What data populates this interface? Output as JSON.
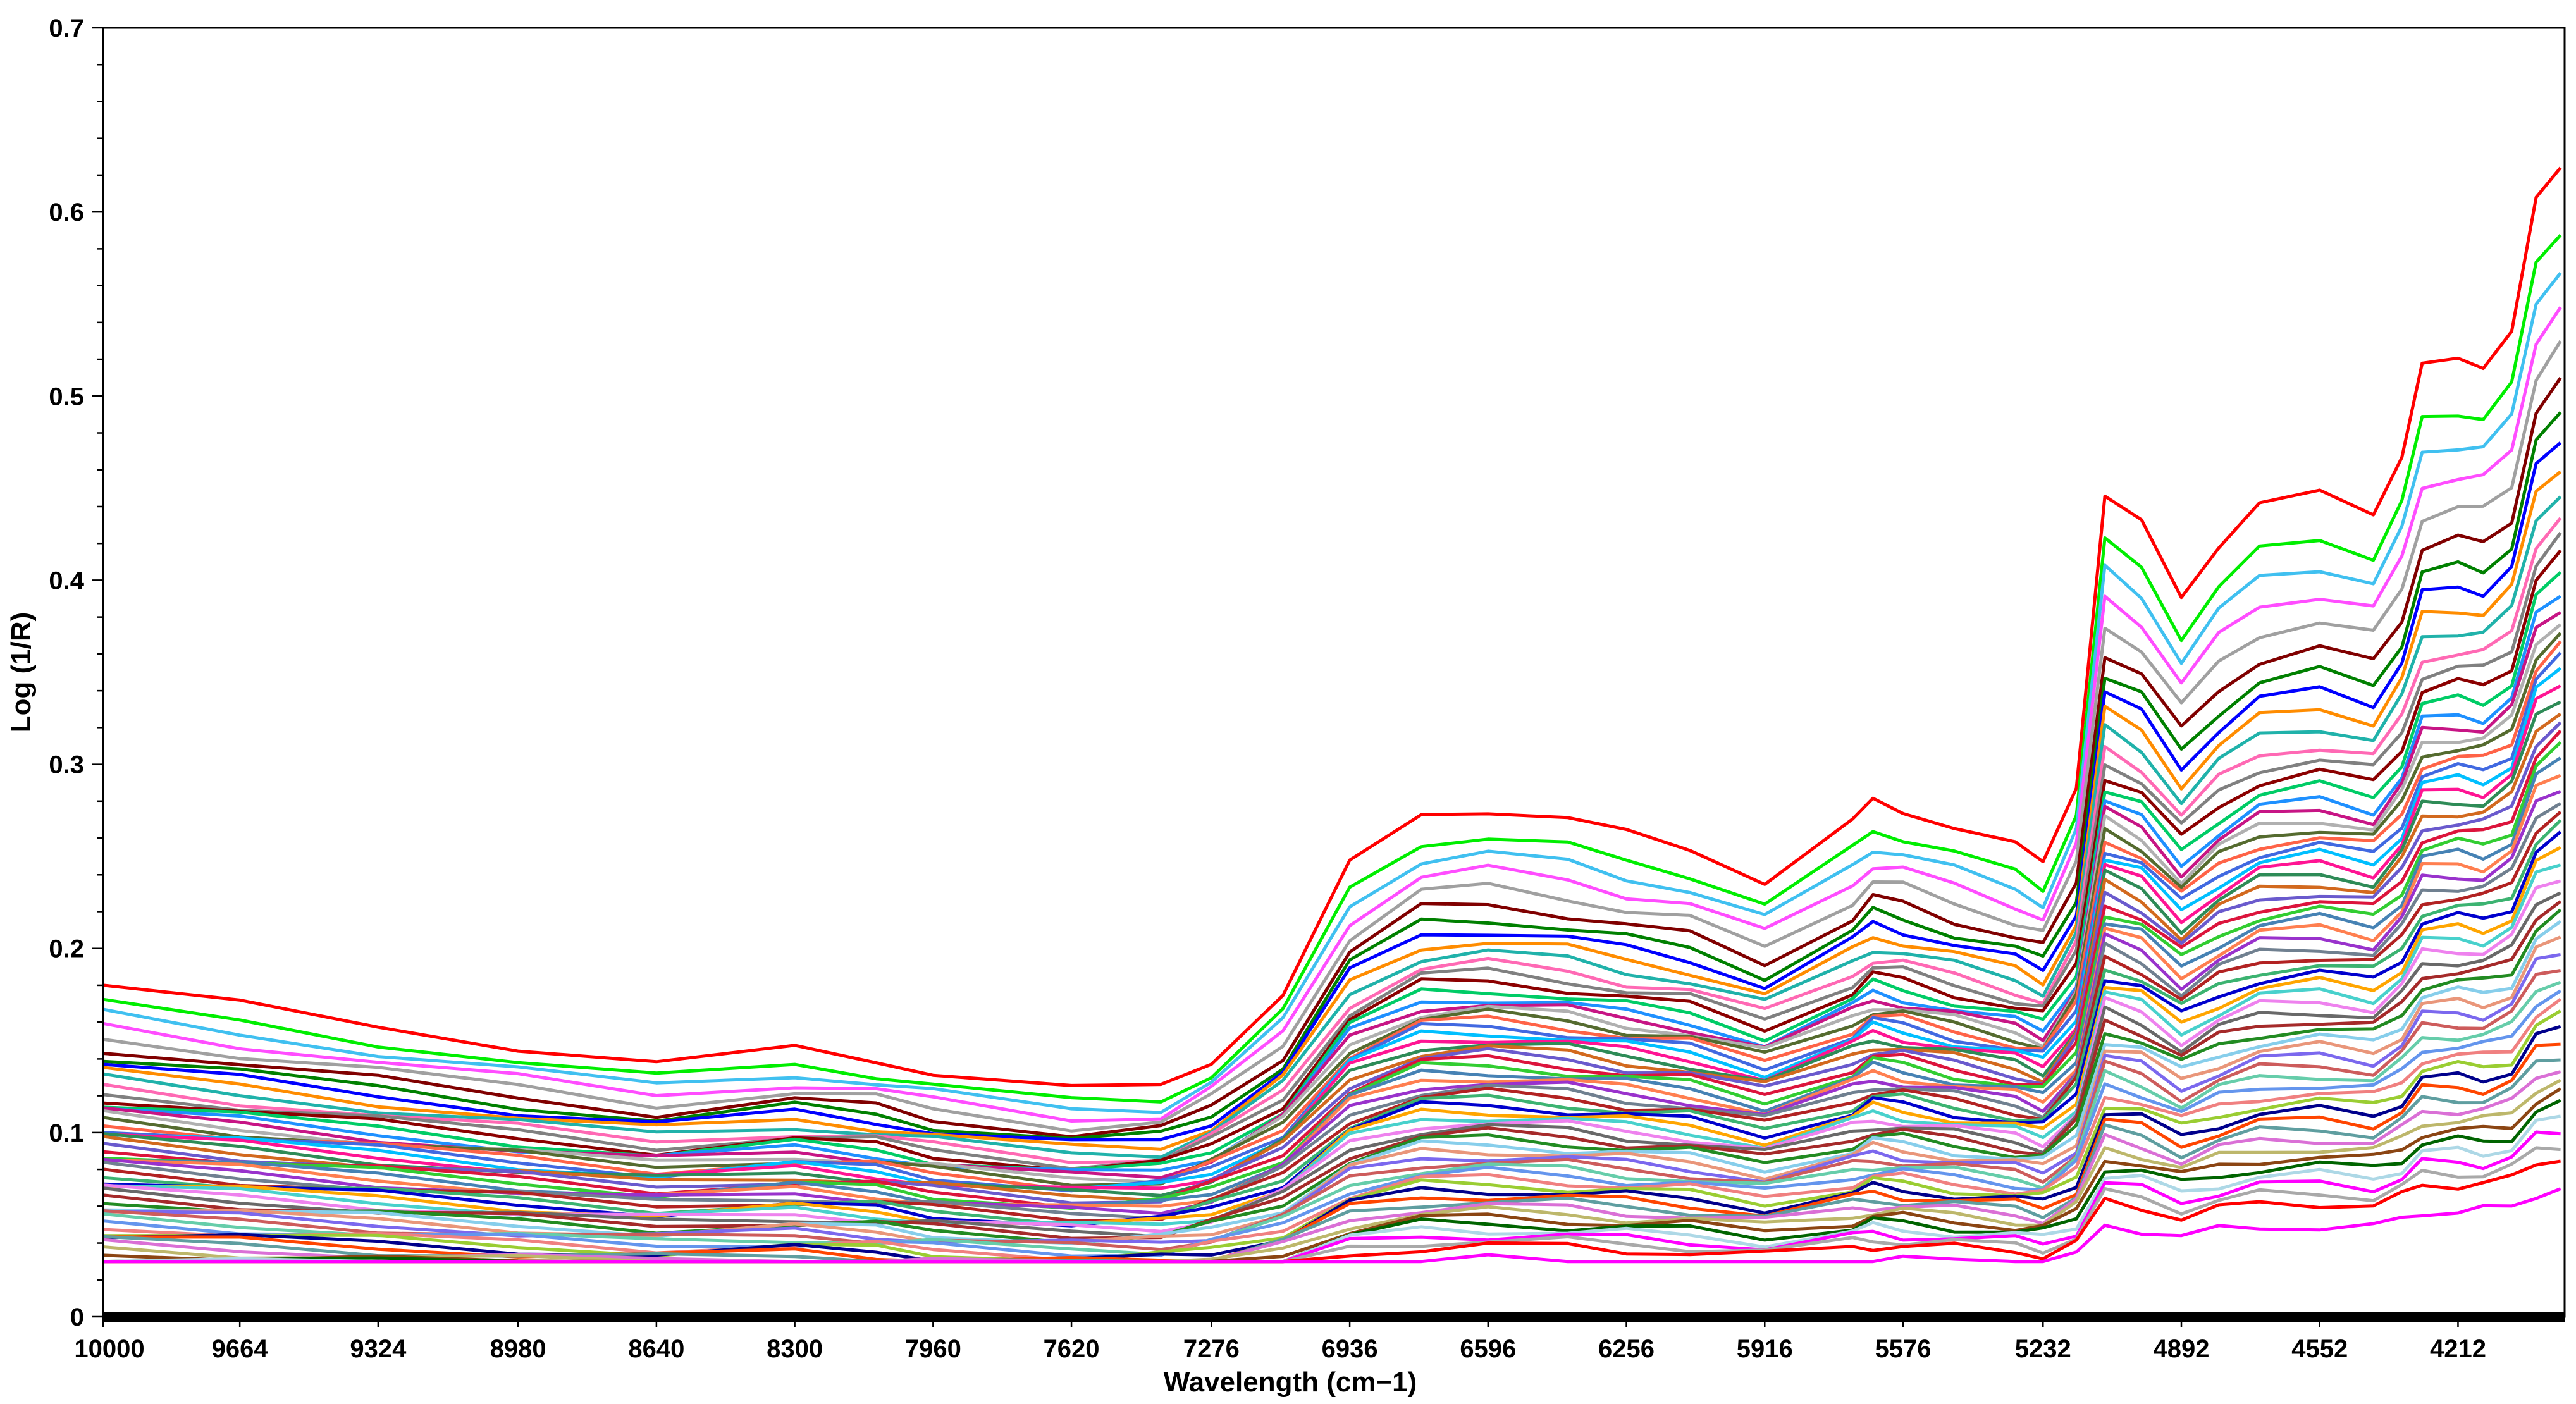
{
  "chart_data": {
    "type": "line",
    "title": "",
    "xlabel": "Wavelength (cm−1)",
    "ylabel": "Log (1/R)",
    "xlim": [
      10000,
      3950
    ],
    "ylim": [
      0,
      0.7
    ],
    "x_reversed": true,
    "grid": false,
    "legend": "none",
    "x_ticks": [
      10000,
      9664,
      9324,
      8980,
      8640,
      8300,
      7960,
      7620,
      7276,
      6936,
      6596,
      6256,
      5916,
      5576,
      5232,
      4892,
      4552,
      4212
    ],
    "x_tick_labels": [
      "10000",
      "9664",
      "9324",
      "8980",
      "8640",
      "8300",
      "7960",
      "7620",
      "7276",
      "6936",
      "6596",
      "6256",
      "5916",
      "5576",
      "5232",
      "4892",
      "4552",
      "4212"
    ],
    "y_ticks": [
      0,
      0.1,
      0.2,
      0.3,
      0.4,
      0.5,
      0.6,
      0.7
    ],
    "y_tick_labels": [
      "0",
      "0.1",
      "0.2",
      "0.3",
      "0.4",
      "0.5",
      "0.6",
      "0.7"
    ],
    "base_curve": {
      "x": [
        10000,
        9664,
        9324,
        8980,
        8640,
        8300,
        8100,
        7960,
        7620,
        7400,
        7276,
        7100,
        6936,
        6760,
        6596,
        6400,
        6256,
        6100,
        5916,
        5700,
        5650,
        5576,
        5450,
        5300,
        5232,
        5150,
        5080,
        4990,
        4892,
        4800,
        4700,
        4552,
        4420,
        4350,
        4300,
        4212,
        4150,
        4080,
        4020,
        3960
      ],
      "values": [
        0.18,
        0.169,
        0.158,
        0.147,
        0.137,
        0.145,
        0.14,
        0.133,
        0.123,
        0.125,
        0.14,
        0.175,
        0.245,
        0.273,
        0.276,
        0.27,
        0.262,
        0.255,
        0.237,
        0.268,
        0.28,
        0.276,
        0.266,
        0.255,
        0.247,
        0.29,
        0.445,
        0.43,
        0.392,
        0.42,
        0.44,
        0.447,
        0.438,
        0.468,
        0.515,
        0.52,
        0.518,
        0.535,
        0.605,
        0.625
      ]
    },
    "series_count": 60,
    "series_offsets": [
      0.0,
      -0.01,
      -0.016,
      -0.022,
      -0.028,
      -0.034,
      -0.039,
      -0.043,
      -0.047,
      -0.051,
      -0.055,
      -0.058,
      -0.061,
      -0.064,
      -0.067,
      -0.069,
      -0.071,
      -0.073,
      -0.075,
      -0.077,
      -0.079,
      -0.081,
      -0.083,
      -0.085,
      -0.087,
      -0.089,
      -0.091,
      -0.093,
      -0.095,
      -0.097,
      -0.099,
      -0.101,
      -0.103,
      -0.105,
      -0.107,
      -0.109,
      -0.111,
      -0.113,
      -0.115,
      -0.117,
      -0.119,
      -0.121,
      -0.123,
      -0.125,
      -0.127,
      -0.129,
      -0.131,
      -0.133,
      -0.135,
      -0.137,
      -0.139,
      -0.141,
      -0.143,
      -0.145,
      -0.147,
      -0.149,
      -0.151,
      -0.153,
      -0.155,
      -0.16
    ],
    "series_colors": [
      "#ff0000",
      "#00ee00",
      "#40c0f0",
      "#ff4dff",
      "#a0a0a0",
      "#800000",
      "#008000",
      "#0000ff",
      "#ff8c00",
      "#20b2aa",
      "#ff69b4",
      "#808080",
      "#8b0000",
      "#00cc66",
      "#1e90ff",
      "#c71585",
      "#b0b0b0",
      "#556b2f",
      "#ff6347",
      "#4169e1",
      "#00bfff",
      "#ff1493",
      "#2e8b57",
      "#d2691e",
      "#6a5acd",
      "#dc143c",
      "#32cd32",
      "#4682b4",
      "#ff7f50",
      "#9932cc",
      "#708090",
      "#b22222",
      "#3cb371",
      "#0000cd",
      "#ffa500",
      "#48d1cc",
      "#ee82ee",
      "#696969",
      "#a52a2a",
      "#228b22",
      "#87ceeb",
      "#e9967a",
      "#7b68ee",
      "#cd5c5c",
      "#66cdaa",
      "#6495ed",
      "#f08080",
      "#9acd32",
      "#00008b",
      "#ff4500",
      "#5f9ea0",
      "#da70d6",
      "#bdb76b",
      "#8b4513",
      "#006400",
      "#add8e6",
      "#ff00ff",
      "#a9a9a9",
      "#ff0000",
      "#ff00ff"
    ]
  }
}
